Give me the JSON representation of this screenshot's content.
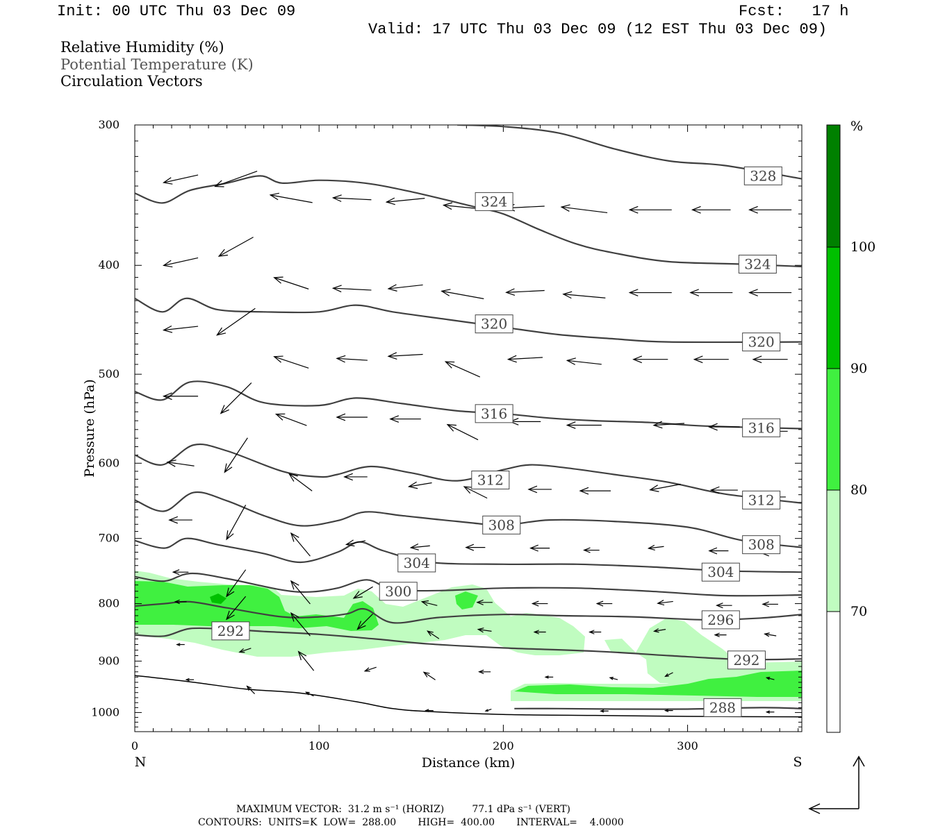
{
  "header": {
    "init": "Init: 00 UTC Thu 03 Dec 09",
    "fcst": "Fcst:   17 h",
    "valid": "Valid: 17 UTC Thu 03 Dec 09 (12 EST Thu 03 Dec 09)"
  },
  "legend": {
    "rh": "Relative Humidity (%)",
    "theta": "Potential Temperature (K)",
    "vectors": "Circulation Vectors"
  },
  "colors": {
    "rh70": "#c0fcc0",
    "rh80": "#40f040",
    "rh90": "#00c000",
    "rh100": "#008000",
    "contour": "#404040",
    "terrain": "#000000"
  },
  "footer": {
    "max_vector": "MAXIMUM VECTOR:  31.2 m s⁻¹ (HORIZ)         77.1 dPa s⁻¹ (VERT)",
    "contours": "CONTOURS:  UNITS=K  LOW=  288.00       HIGH=  400.00       INTERVAL=    4.0000"
  },
  "chart_data": {
    "type": "cross-section",
    "xlabel": "Distance (km)",
    "ylabel": "Pressure (hPa)",
    "xlim": [
      0,
      362
    ],
    "ylim": [
      1040,
      300
    ],
    "y_scale": "log",
    "x_ticks": [
      "0",
      "100",
      "200",
      "300"
    ],
    "x_tick_values": [
      0,
      100,
      200,
      300
    ],
    "y_ticks": [
      "300",
      "400",
      "500",
      "600",
      "700",
      "800",
      "900",
      "1000"
    ],
    "y_tick_values": [
      300,
      400,
      500,
      600,
      700,
      800,
      900,
      1000
    ],
    "left_end": "N",
    "right_end": "S",
    "colorbar": {
      "unit": "%",
      "levels": [
        "70",
        "80",
        "90",
        "100"
      ]
    },
    "theta_contours": [
      {
        "value": 328,
        "label": "328",
        "points": [
          [
            175,
            300
          ],
          [
            200,
            301
          ],
          [
            230,
            305
          ],
          [
            260,
            315
          ],
          [
            290,
            323
          ],
          [
            320,
            326
          ],
          [
            362,
            335
          ]
        ]
      },
      {
        "value": 324,
        "label": "324",
        "points": [
          [
            0,
            345
          ],
          [
            15,
            352
          ],
          [
            30,
            343
          ],
          [
            50,
            338
          ],
          [
            68,
            333
          ],
          [
            80,
            338
          ],
          [
            100,
            336
          ],
          [
            125,
            338
          ],
          [
            150,
            344
          ],
          [
            185,
            355
          ],
          [
            200,
            360
          ],
          [
            220,
            372
          ],
          [
            240,
            383
          ],
          [
            260,
            390
          ],
          [
            290,
            397
          ],
          [
            330,
            399
          ],
          [
            362,
            401
          ]
        ]
      },
      {
        "value": 320,
        "label": "320",
        "points": [
          [
            0,
            428
          ],
          [
            15,
            440
          ],
          [
            28,
            428
          ],
          [
            45,
            438
          ],
          [
            70,
            440
          ],
          [
            100,
            440
          ],
          [
            120,
            434
          ],
          [
            140,
            440
          ],
          [
            170,
            447
          ],
          [
            200,
            454
          ],
          [
            230,
            461
          ],
          [
            260,
            465
          ],
          [
            290,
            468
          ],
          [
            362,
            468
          ]
        ]
      },
      {
        "value": 316,
        "label": "316",
        "points": [
          [
            0,
            518
          ],
          [
            15,
            527
          ],
          [
            30,
            508
          ],
          [
            50,
            513
          ],
          [
            70,
            530
          ],
          [
            100,
            533
          ],
          [
            120,
            525
          ],
          [
            145,
            531
          ],
          [
            175,
            539
          ],
          [
            200,
            542
          ],
          [
            225,
            547
          ],
          [
            250,
            550
          ],
          [
            280,
            552
          ],
          [
            310,
            556
          ],
          [
            362,
            559
          ]
        ]
      },
      {
        "value": 312,
        "label": "312",
        "points": [
          [
            0,
            590
          ],
          [
            15,
            602
          ],
          [
            32,
            578
          ],
          [
            50,
            585
          ],
          [
            80,
            610
          ],
          [
            100,
            617
          ],
          [
            110,
            614
          ],
          [
            128,
            604
          ],
          [
            150,
            612
          ],
          [
            175,
            622
          ],
          [
            200,
            608
          ],
          [
            215,
            602
          ],
          [
            235,
            606
          ],
          [
            260,
            614
          ],
          [
            290,
            624
          ],
          [
            320,
            639
          ],
          [
            362,
            651
          ]
        ]
      },
      {
        "value": 308,
        "label": "308",
        "points": [
          [
            0,
            647
          ],
          [
            16,
            662
          ],
          [
            32,
            637
          ],
          [
            50,
            648
          ],
          [
            70,
            668
          ],
          [
            90,
            682
          ],
          [
            110,
            675
          ],
          [
            125,
            663
          ],
          [
            145,
            668
          ],
          [
            175,
            676
          ],
          [
            200,
            681
          ],
          [
            225,
            674
          ],
          [
            260,
            676
          ],
          [
            300,
            684
          ],
          [
            330,
            703
          ],
          [
            362,
            713
          ]
        ]
      },
      {
        "value": 304,
        "label": "304",
        "points": [
          [
            0,
            703
          ],
          [
            16,
            714
          ],
          [
            28,
            700
          ],
          [
            45,
            709
          ],
          [
            70,
            722
          ],
          [
            90,
            735
          ],
          [
            110,
            720
          ],
          [
            122,
            705
          ],
          [
            135,
            718
          ],
          [
            160,
            735
          ],
          [
            200,
            738
          ],
          [
            240,
            738
          ],
          [
            280,
            742
          ],
          [
            320,
            748
          ],
          [
            362,
            750
          ]
        ]
      },
      {
        "value": 300,
        "label": "300",
        "points": [
          [
            0,
            757
          ],
          [
            16,
            764
          ],
          [
            30,
            752
          ],
          [
            50,
            760
          ],
          [
            80,
            778
          ],
          [
            95,
            781
          ],
          [
            110,
            775
          ],
          [
            126,
            762
          ],
          [
            140,
            777
          ],
          [
            165,
            779
          ],
          [
            200,
            775
          ],
          [
            240,
            775
          ],
          [
            280,
            780
          ],
          [
            320,
            787
          ],
          [
            362,
            786
          ]
        ]
      },
      {
        "value": 296,
        "label": "296",
        "points": [
          [
            0,
            804
          ],
          [
            16,
            800
          ],
          [
            30,
            797
          ],
          [
            50,
            807
          ],
          [
            80,
            822
          ],
          [
            100,
            822
          ],
          [
            115,
            817
          ],
          [
            125,
            809
          ],
          [
            140,
            832
          ],
          [
            165,
            823
          ],
          [
            200,
            818
          ],
          [
            230,
            820
          ],
          [
            270,
            822
          ],
          [
            310,
            827
          ],
          [
            340,
            824
          ],
          [
            362,
            818
          ]
        ]
      },
      {
        "value": 292,
        "label": "292",
        "points": [
          [
            0,
            853
          ],
          [
            16,
            855
          ],
          [
            30,
            842
          ],
          [
            50,
            843
          ],
          [
            70,
            847
          ],
          [
            100,
            852
          ],
          [
            130,
            860
          ],
          [
            160,
            869
          ],
          [
            200,
            876
          ],
          [
            250,
            882
          ],
          [
            290,
            890
          ],
          [
            330,
            897
          ],
          [
            362,
            896
          ]
        ]
      },
      {
        "value": 288,
        "label": "288",
        "points": [
          [
            206,
            992
          ],
          [
            230,
            992
          ],
          [
            260,
            993
          ],
          [
            300,
            993
          ],
          [
            340,
            990
          ],
          [
            362,
            992
          ]
        ]
      }
    ],
    "terrain": [
      [
        0,
        927
      ],
      [
        30,
        939
      ],
      [
        60,
        953
      ],
      [
        90,
        961
      ],
      [
        120,
        978
      ],
      [
        140,
        992
      ],
      [
        160,
        998
      ],
      [
        200,
        1004
      ],
      [
        250,
        1006
      ],
      [
        300,
        1008
      ],
      [
        362,
        1009
      ]
    ]
  }
}
